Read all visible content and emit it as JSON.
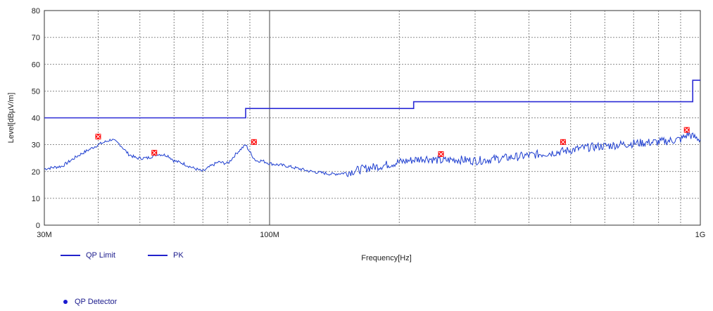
{
  "chart_data": {
    "type": "line",
    "title": "",
    "xlabel": "Frequency[Hz]",
    "ylabel": "Level[dBµV/m]",
    "x_scale": "log",
    "xlim": [
      30,
      1000
    ],
    "ylim": [
      0,
      80
    ],
    "x_ticks": [
      {
        "value": 30,
        "label": "30M"
      },
      {
        "value": 100,
        "label": "100M"
      },
      {
        "value": 1000,
        "label": "1G"
      }
    ],
    "y_ticks": [
      0,
      10,
      20,
      30,
      40,
      50,
      60,
      70,
      80
    ],
    "grid": true,
    "colors": {
      "limit": "#2b2bd6",
      "pk": "#1f3fd0",
      "marker": "#ff1010",
      "grid": "#666666"
    },
    "series": [
      {
        "name": "QP Limit",
        "type": "step",
        "x": [
          30,
          88,
          88,
          216,
          216,
          960,
          960,
          1000
        ],
        "y": [
          40,
          40,
          43.5,
          43.5,
          46,
          46,
          54,
          54
        ]
      },
      {
        "name": "PK",
        "type": "line",
        "x": [
          30,
          33,
          36,
          40,
          43,
          45,
          47,
          49,
          52,
          55,
          58,
          60,
          63,
          66,
          70,
          73,
          76,
          80,
          84,
          88,
          91,
          93,
          96,
          100,
          110,
          125,
          140,
          150,
          165,
          180,
          200,
          230,
          250,
          270,
          300,
          350,
          400,
          450,
          480,
          500,
          550,
          600,
          700,
          800,
          900,
          940,
          960,
          1000
        ],
        "y": [
          21,
          22,
          26,
          30,
          32,
          30,
          26.5,
          25,
          25,
          26.5,
          26,
          24,
          23,
          21.5,
          20,
          22,
          23.5,
          23,
          27,
          30,
          26,
          24,
          24,
          23,
          22,
          20,
          19,
          19.5,
          21,
          22,
          23.5,
          25,
          24,
          24.5,
          24,
          25,
          26,
          27,
          27.5,
          28,
          29,
          29.5,
          30.5,
          31,
          32,
          34,
          33,
          32
        ]
      }
    ],
    "markers": {
      "name": "QP Detector",
      "points": [
        {
          "x": 40,
          "y": 33
        },
        {
          "x": 54,
          "y": 27
        },
        {
          "x": 92,
          "y": 31
        },
        {
          "x": 250,
          "y": 26.5
        },
        {
          "x": 480,
          "y": 31
        },
        {
          "x": 930,
          "y": 35.5
        }
      ]
    }
  },
  "legend": {
    "qp_limit": "QP Limit",
    "pk": "PK",
    "qp_detector": "QP Detector"
  }
}
